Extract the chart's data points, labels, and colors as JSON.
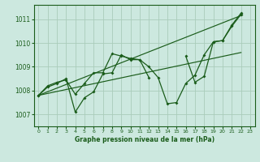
{
  "title": "Graphe pression niveau de la mer (hPa)",
  "background_color": "#cce8df",
  "grid_color": "#aaccbb",
  "line_color": "#1a5c1a",
  "xlim": [
    -0.5,
    23.5
  ],
  "ylim": [
    1006.5,
    1011.6
  ],
  "yticks": [
    1007,
    1008,
    1009,
    1010,
    1011
  ],
  "xticks": [
    0,
    1,
    2,
    3,
    4,
    5,
    6,
    7,
    8,
    9,
    10,
    11,
    12,
    13,
    14,
    15,
    16,
    17,
    18,
    19,
    20,
    21,
    22,
    23
  ],
  "line1_x": [
    0,
    1,
    2,
    3,
    4,
    5,
    6,
    7,
    8,
    9,
    10,
    11,
    12,
    13,
    14,
    15,
    16,
    17,
    18,
    19,
    20,
    21,
    22
  ],
  "line1_y": [
    1007.8,
    1008.2,
    1008.35,
    1008.45,
    1007.85,
    1008.3,
    1008.75,
    1008.75,
    1009.55,
    1009.45,
    1009.35,
    1009.3,
    1009.0,
    1008.55,
    1007.45,
    1007.5,
    1008.3,
    1008.65,
    1009.5,
    1010.05,
    1010.1,
    1010.7,
    1011.2
  ],
  "line2_x": [
    0,
    1,
    2,
    3,
    4,
    5,
    6,
    7,
    8,
    9,
    10,
    11,
    12
  ],
  "line2_y": [
    1007.8,
    1008.15,
    1008.3,
    1008.5,
    1007.1,
    1007.7,
    1007.95,
    1008.7,
    1008.75,
    1009.5,
    1009.3,
    1009.3,
    1008.55
  ],
  "line3_x": [
    16,
    17,
    18,
    19,
    20,
    21,
    22
  ],
  "line3_y": [
    1009.45,
    1008.35,
    1008.6,
    1010.05,
    1010.1,
    1010.75,
    1011.25
  ],
  "trend1_x": [
    0,
    22
  ],
  "trend1_y": [
    1007.8,
    1011.15
  ],
  "trend2_x": [
    0,
    22
  ],
  "trend2_y": [
    1007.8,
    1009.6
  ]
}
